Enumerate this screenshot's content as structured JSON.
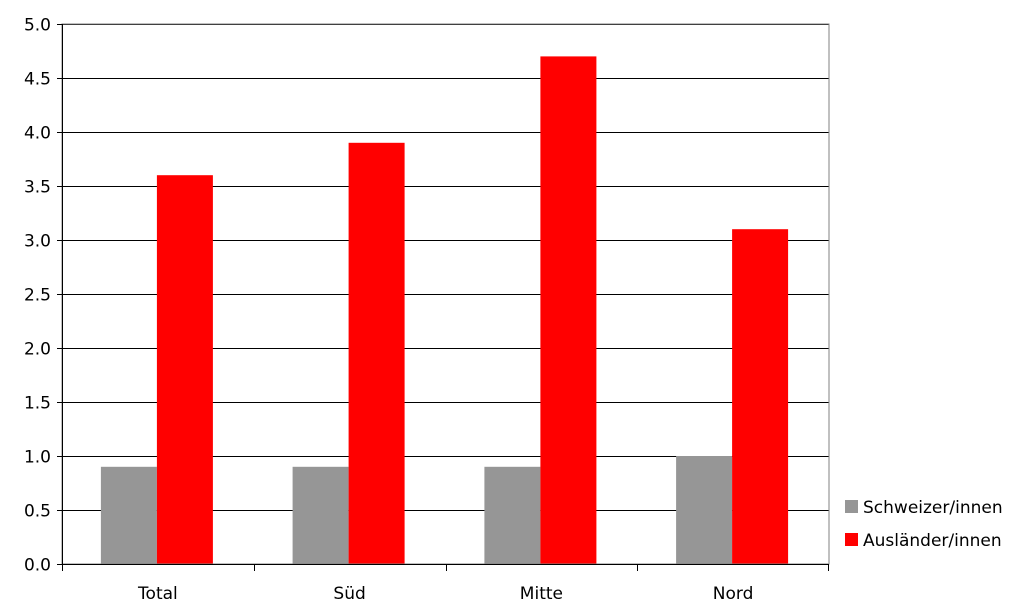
{
  "chart_data": {
    "type": "bar",
    "title": "",
    "xlabel": "",
    "ylabel": "",
    "categories": [
      "Total",
      "Süd",
      "Mitte",
      "Nord"
    ],
    "series": [
      {
        "name": "Schweizer/innen",
        "values": [
          0.9,
          0.9,
          0.9,
          1.0
        ],
        "color": "#969696"
      },
      {
        "name": "Ausländer/innen",
        "values": [
          3.6,
          3.9,
          4.7,
          3.1
        ],
        "color": "#ff0000"
      }
    ],
    "ylim": [
      0,
      5
    ],
    "yticks": [
      "0.0",
      "0.5",
      "1.0",
      "1.5",
      "2.0",
      "2.5",
      "3.0",
      "3.5",
      "4.0",
      "4.5",
      "5.0"
    ],
    "grid": true,
    "legend_position": "bottom-right"
  }
}
